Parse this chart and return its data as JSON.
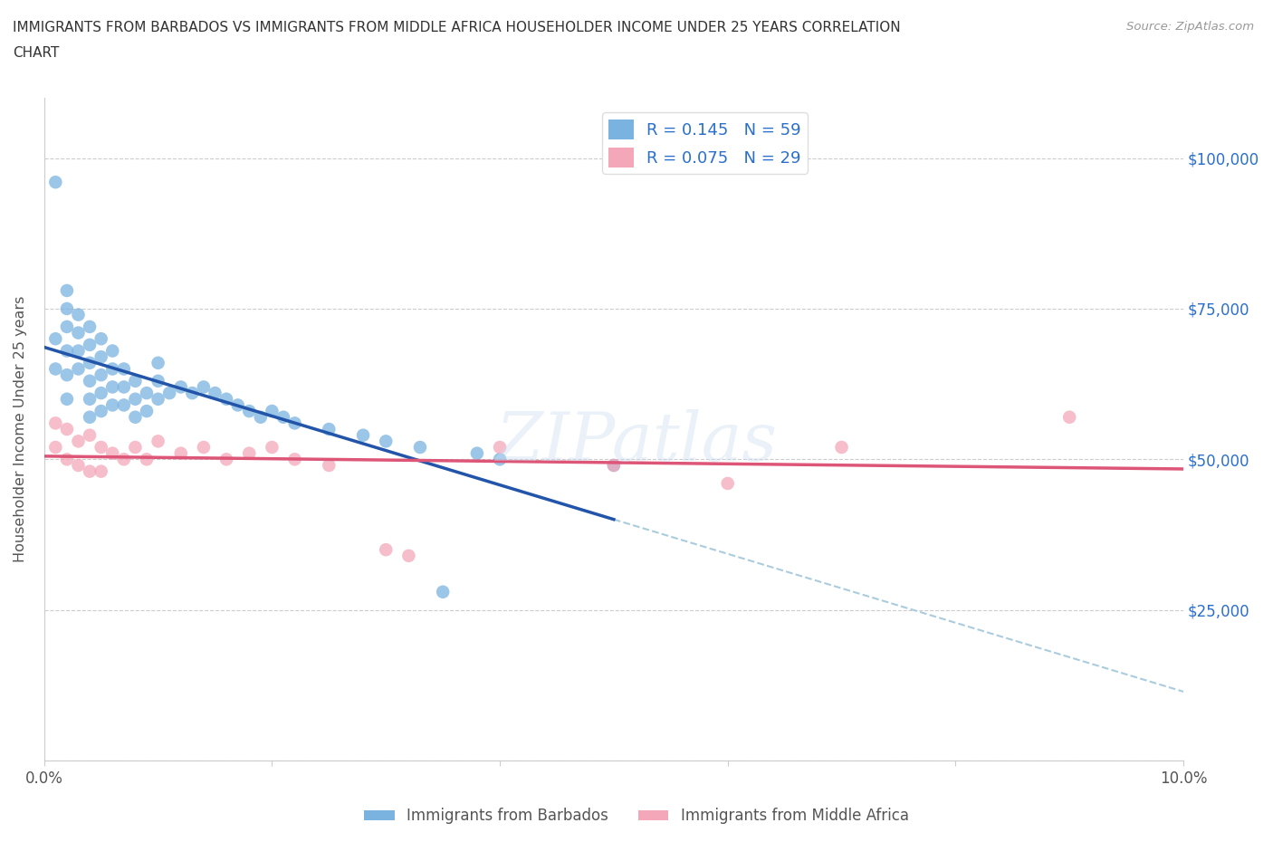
{
  "title_line1": "IMMIGRANTS FROM BARBADOS VS IMMIGRANTS FROM MIDDLE AFRICA HOUSEHOLDER INCOME UNDER 25 YEARS CORRELATION",
  "title_line2": "CHART",
  "source": "Source: ZipAtlas.com",
  "ylabel": "Householder Income Under 25 years",
  "xlim": [
    0.0,
    0.1
  ],
  "ylim": [
    0,
    110000
  ],
  "yticks": [
    0,
    25000,
    50000,
    75000,
    100000
  ],
  "ytick_labels_right": [
    "",
    "$25,000",
    "$50,000",
    "$75,000",
    "$100,000"
  ],
  "xticks": [
    0.0,
    0.02,
    0.04,
    0.06,
    0.08,
    0.1
  ],
  "xtick_labels": [
    "0.0%",
    "",
    "",
    "",
    "",
    "10.0%"
  ],
  "color_barbados": "#7ab3e0",
  "color_middle_africa": "#f4a7b9",
  "color_barbados_line": "#2255aa",
  "color_middle_africa_line": "#dd5577",
  "color_dashed_line": "#aaccdd",
  "R_barbados": 0.145,
  "N_barbados": 59,
  "R_middle_africa": 0.075,
  "N_middle_africa": 29,
  "legend_label_barbados": "Immigrants from Barbados",
  "legend_label_middle_africa": "Immigrants from Middle Africa",
  "watermark": "ZIPatlas",
  "barbados_x": [
    0.001,
    0.001,
    0.001,
    0.002,
    0.002,
    0.002,
    0.002,
    0.002,
    0.002,
    0.003,
    0.003,
    0.003,
    0.003,
    0.004,
    0.004,
    0.004,
    0.004,
    0.004,
    0.004,
    0.005,
    0.005,
    0.005,
    0.005,
    0.005,
    0.006,
    0.006,
    0.006,
    0.006,
    0.007,
    0.007,
    0.007,
    0.008,
    0.008,
    0.008,
    0.009,
    0.009,
    0.01,
    0.01,
    0.01,
    0.011,
    0.012,
    0.013,
    0.014,
    0.015,
    0.016,
    0.017,
    0.018,
    0.019,
    0.02,
    0.021,
    0.022,
    0.025,
    0.028,
    0.03,
    0.033,
    0.035,
    0.038,
    0.04,
    0.05
  ],
  "barbados_y": [
    96000,
    70000,
    65000,
    78000,
    75000,
    72000,
    68000,
    64000,
    60000,
    74000,
    71000,
    68000,
    65000,
    72000,
    69000,
    66000,
    63000,
    60000,
    57000,
    70000,
    67000,
    64000,
    61000,
    58000,
    68000,
    65000,
    62000,
    59000,
    65000,
    62000,
    59000,
    63000,
    60000,
    57000,
    61000,
    58000,
    66000,
    63000,
    60000,
    61000,
    62000,
    61000,
    62000,
    61000,
    60000,
    59000,
    58000,
    57000,
    58000,
    57000,
    56000,
    55000,
    54000,
    53000,
    52000,
    28000,
    51000,
    50000,
    49000
  ],
  "middle_africa_x": [
    0.001,
    0.001,
    0.002,
    0.002,
    0.003,
    0.003,
    0.004,
    0.004,
    0.005,
    0.005,
    0.006,
    0.007,
    0.008,
    0.009,
    0.01,
    0.012,
    0.014,
    0.016,
    0.018,
    0.02,
    0.022,
    0.025,
    0.03,
    0.032,
    0.04,
    0.05,
    0.06,
    0.07,
    0.09
  ],
  "middle_africa_y": [
    56000,
    52000,
    55000,
    50000,
    53000,
    49000,
    54000,
    48000,
    52000,
    48000,
    51000,
    50000,
    52000,
    50000,
    53000,
    51000,
    52000,
    50000,
    51000,
    52000,
    50000,
    49000,
    35000,
    34000,
    52000,
    49000,
    46000,
    52000,
    57000
  ]
}
